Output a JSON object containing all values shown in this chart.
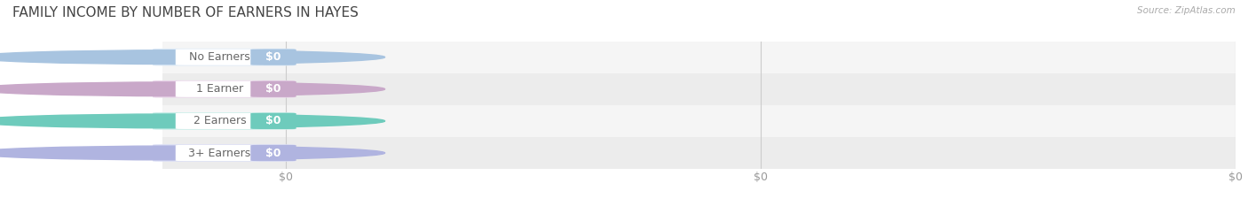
{
  "title": "FAMILY INCOME BY NUMBER OF EARNERS IN HAYES",
  "source": "Source: ZipAtlas.com",
  "categories": [
    "No Earners",
    "1 Earner",
    "2 Earners",
    "3+ Earners"
  ],
  "values": [
    0,
    0,
    0,
    0
  ],
  "bar_colors": [
    "#a8c4e0",
    "#c9a8c9",
    "#6ecbbc",
    "#b0b4e0"
  ],
  "label_bg_colors": [
    "#ddeaf7",
    "#ead5ea",
    "#c8ede8",
    "#dcdff5"
  ],
  "row_colors": [
    "#f5f5f5",
    "#ececec",
    "#f5f5f5",
    "#ececec"
  ],
  "background_color": "#ffffff",
  "grid_color": "#cccccc",
  "tick_label_color": "#999999",
  "title_color": "#444444",
  "source_color": "#aaaaaa",
  "label_text_color": "#666666",
  "title_fontsize": 11,
  "tick_fontsize": 9,
  "label_fontsize": 9,
  "value_fontsize": 9
}
